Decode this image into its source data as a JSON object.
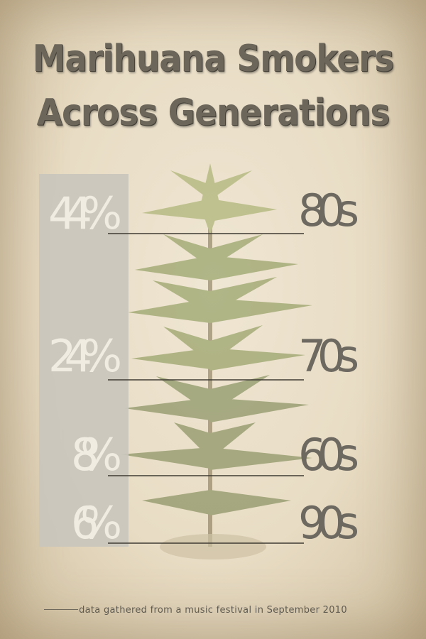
{
  "title_line1": "Marihuana Smokers",
  "title_line2": "Across Generations",
  "footnote": "data gathered from a music festival in September 2010",
  "colors": {
    "background": "#e8dcc4",
    "bar": "#c9c5bd",
    "percent_text": "#f1ece2",
    "generation_text": "#6d6961",
    "title": "#6b655a",
    "plant": "#8c9a55"
  },
  "icons": {
    "background_illustration": "cannabis-plant-icon"
  },
  "chart_data": {
    "type": "bar",
    "orientation": "vertical",
    "categories": [
      "80s",
      "70s",
      "60s",
      "90s"
    ],
    "values": [
      44,
      24,
      8,
      6
    ],
    "value_labels": [
      "44%",
      "24%",
      "8%",
      "6%"
    ],
    "ylim": [
      0,
      44
    ],
    "grid": false,
    "legend": "none"
  }
}
